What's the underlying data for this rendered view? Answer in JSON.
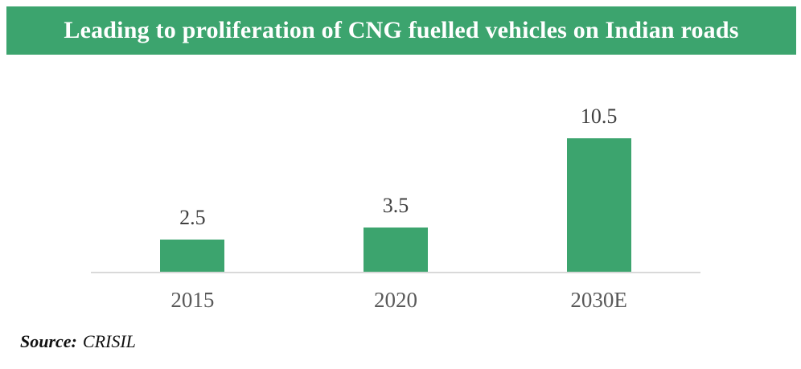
{
  "header": {
    "title": "Leading to proliferation of CNG fuelled vehicles on Indian roads",
    "bg_color": "#3CA46E",
    "text_color": "#FFFFFF"
  },
  "chart_data": {
    "type": "bar",
    "categories": [
      "2015",
      "2020",
      "2030E"
    ],
    "values": [
      2.5,
      3.5,
      10.5
    ],
    "title": "Leading to proliferation of CNG fuelled vehicles on Indian roads",
    "xlabel": "",
    "ylabel": "",
    "ylim": [
      0,
      10.5
    ],
    "grid": false,
    "legend": false,
    "value_labels_shown": true,
    "bar_color": "#3CA46E",
    "axis_color": "#D9D9D9",
    "value_label_color": "#404040",
    "tick_label_color": "#595959"
  },
  "source": {
    "label": "Source:",
    "value": "CRISIL"
  }
}
